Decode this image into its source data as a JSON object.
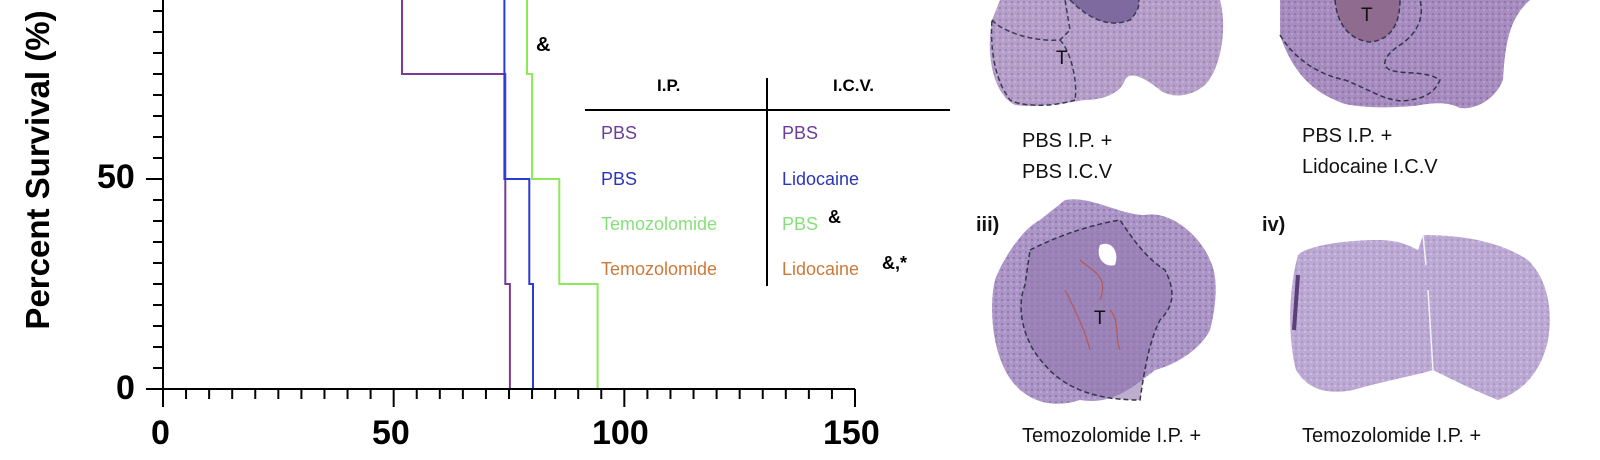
{
  "chart_data": {
    "type": "line",
    "subtype": "kaplan-meier step survival",
    "title": "",
    "xlabel": "",
    "ylabel": "Percent Survival (%)",
    "xlim": [
      0,
      150
    ],
    "ylim": [
      0,
      100
    ],
    "x_ticks": [
      0,
      50,
      100,
      150
    ],
    "x_minor_tick_step": 5,
    "y_ticks": [
      0,
      50
    ],
    "y_minor_tick_step": 5,
    "grid": false,
    "series": [
      {
        "name": "PBS I.P. + PBS I.C.V.",
        "color": "#7b3a96",
        "steps": [
          [
            0,
            100
          ],
          [
            51.8,
            100
          ],
          [
            51.8,
            75
          ],
          [
            74.2,
            75
          ],
          [
            74.2,
            25
          ],
          [
            75.2,
            25
          ],
          [
            75.2,
            0
          ]
        ]
      },
      {
        "name": "PBS I.P. + Lidocaine I.C.V.",
        "color": "#2a3bd1",
        "steps": [
          [
            0,
            100
          ],
          [
            74.0,
            100
          ],
          [
            74.0,
            50
          ],
          [
            79.4,
            50
          ],
          [
            79.4,
            25
          ],
          [
            80.2,
            25
          ],
          [
            80.2,
            0
          ]
        ]
      },
      {
        "name": "Temozolomide I.P. + PBS I.C.V.",
        "color": "#8ee85a",
        "steps": [
          [
            0,
            100
          ],
          [
            78.9,
            100
          ],
          [
            78.9,
            75
          ],
          [
            80.0,
            75
          ],
          [
            80.0,
            50
          ],
          [
            85.9,
            50
          ],
          [
            85.9,
            25
          ],
          [
            94.2,
            25
          ],
          [
            94.2,
            0
          ]
        ]
      }
    ],
    "annotations": [
      {
        "text": "&",
        "x": 82,
        "y": 82
      }
    ]
  },
  "axis": {
    "ylabel": "Percent Survival (%)",
    "y_tick_labels": [
      "50",
      "0"
    ],
    "x_tick_labels": [
      "0",
      "50",
      "100",
      "150"
    ]
  },
  "plot_annotation": "&",
  "legend": {
    "headers": [
      "I.P.",
      "I.C.V."
    ],
    "rows": [
      {
        "ip": "PBS",
        "icv": "PBS",
        "color": "#6c3d9a",
        "mark": ""
      },
      {
        "ip": "PBS",
        "icv": "Lidocaine",
        "color": "#2a36b8",
        "mark": ""
      },
      {
        "ip": "Temozolomide",
        "icv": "PBS",
        "color": "#86e07a",
        "mark": "&"
      },
      {
        "ip": "Temozolomide",
        "icv": "Lidocaine",
        "color": "#cc7a3a",
        "mark": "&,*"
      }
    ]
  },
  "panels": [
    {
      "label": "",
      "caption_lines": [
        "PBS I.P. +",
        "PBS I.C.V"
      ],
      "tumor_label": "T"
    },
    {
      "label": "",
      "caption_lines": [
        "PBS I.P. +",
        "Lidocaine I.C.V"
      ],
      "tumor_label": "T"
    },
    {
      "label": "iii)",
      "caption_lines": [
        "Temozolomide I.P. +"
      ],
      "tumor_label": "T"
    },
    {
      "label": "iv)",
      "caption_lines": [
        "Temozolomide I.P. +"
      ],
      "tumor_label": ""
    }
  ]
}
